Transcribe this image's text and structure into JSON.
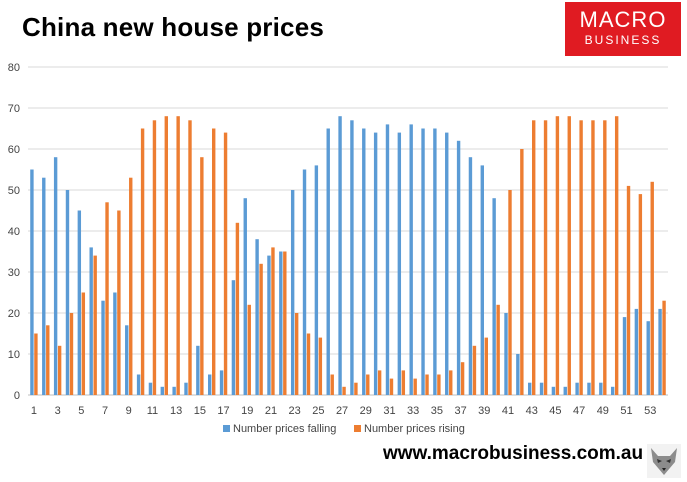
{
  "header": {
    "title": "China new house prices"
  },
  "logo": {
    "line1": "MACRO",
    "line2": "BUSINESS",
    "color": "#e01b22"
  },
  "footer": {
    "url": "www.macrobusiness.com.au"
  },
  "colors": {
    "falling": "#5b9bd5",
    "rising": "#ed7d31",
    "grid": "#d9d9d9"
  },
  "chart_data": {
    "type": "bar",
    "title": "China new house prices",
    "xlabel": "",
    "ylabel": "",
    "ylim": [
      0,
      80
    ],
    "yticks": [
      0,
      10,
      20,
      30,
      40,
      50,
      60,
      70,
      80
    ],
    "grid": true,
    "legend": "bottom",
    "categories": [
      1,
      2,
      3,
      4,
      5,
      6,
      7,
      8,
      9,
      10,
      11,
      12,
      13,
      14,
      15,
      16,
      17,
      18,
      19,
      20,
      21,
      22,
      23,
      24,
      25,
      26,
      27,
      28,
      29,
      30,
      31,
      32,
      33,
      34,
      35,
      36,
      37,
      38,
      39,
      40,
      41,
      42,
      43,
      44,
      45,
      46,
      47,
      48,
      49,
      50,
      51,
      52,
      53,
      54
    ],
    "xtick_labels": [
      "1",
      "3",
      "5",
      "7",
      "9",
      "11",
      "13",
      "15",
      "17",
      "19",
      "21",
      "23",
      "25",
      "27",
      "29",
      "31",
      "33",
      "35",
      "37",
      "39",
      "41",
      "43",
      "45",
      "47",
      "49",
      "51",
      "53"
    ],
    "series": [
      {
        "name": "Number prices falling",
        "color": "#5b9bd5",
        "values": [
          55,
          53,
          58,
          50,
          45,
          36,
          23,
          25,
          17,
          5,
          3,
          2,
          2,
          3,
          12,
          5,
          6,
          28,
          48,
          38,
          34,
          35,
          50,
          55,
          56,
          65,
          68,
          67,
          65,
          64,
          66,
          64,
          66,
          65,
          65,
          64,
          62,
          58,
          56,
          48,
          20,
          10,
          3,
          3,
          2,
          2,
          3,
          3,
          3,
          2,
          19,
          21,
          18,
          21
        ]
      },
      {
        "name": "Number prices rising",
        "color": "#ed7d31",
        "values": [
          15,
          17,
          12,
          20,
          25,
          34,
          47,
          45,
          53,
          65,
          67,
          68,
          68,
          67,
          58,
          65,
          64,
          42,
          22,
          32,
          36,
          35,
          20,
          15,
          14,
          5,
          2,
          3,
          5,
          6,
          4,
          6,
          4,
          5,
          5,
          6,
          8,
          12,
          14,
          22,
          50,
          60,
          67,
          67,
          68,
          68,
          67,
          67,
          67,
          68,
          51,
          49,
          52,
          23
        ]
      }
    ]
  }
}
